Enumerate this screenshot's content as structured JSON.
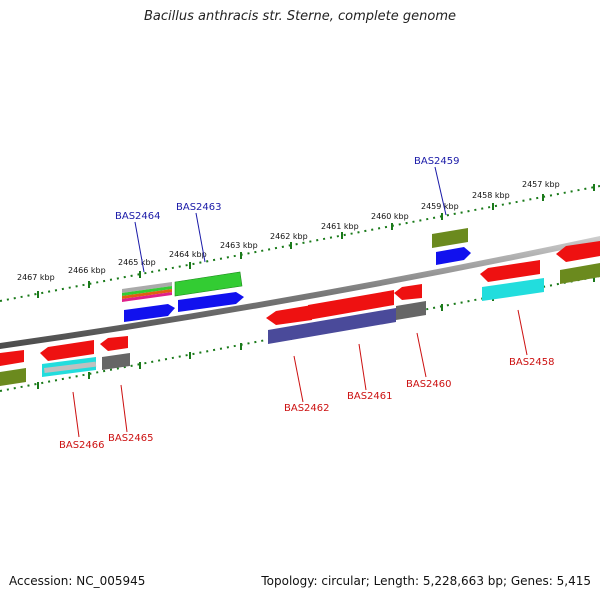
{
  "title": "Bacillus anthracis str. Sterne, complete genome",
  "footer": {
    "accession": "Accession: NC_005945",
    "summary": "Topology: circular; Length: 5,228,663 bp; Genes: 5,415"
  },
  "scale": {
    "unit": "kbp",
    "ticks": [
      "2467 kbp",
      "2466 kbp",
      "2465 kbp",
      "2464 kbp",
      "2463 kbp",
      "2462 kbp",
      "2461 kbp",
      "2460 kbp",
      "2459 kbp",
      "2458 kbp",
      "2457 kbp"
    ]
  },
  "gene_labels": {
    "forward": [
      "BAS2464",
      "BAS2463",
      "BAS2459"
    ],
    "reverse": [
      "BAS2466",
      "BAS2465",
      "BAS2462",
      "BAS2461",
      "BAS2460",
      "BAS2458"
    ]
  },
  "colors": {
    "backbone": "#808080",
    "tick": "#1a7a1a",
    "forward_label": "#1a1aa8",
    "reverse_label": "#cc1111",
    "cds_red": "#ee1111",
    "blue": "#1111ee",
    "green": "#33cc33",
    "olive": "#6b8a1e",
    "cyan": "#22dddd",
    "gray": "#666666",
    "navy": "#4a4a9a"
  }
}
